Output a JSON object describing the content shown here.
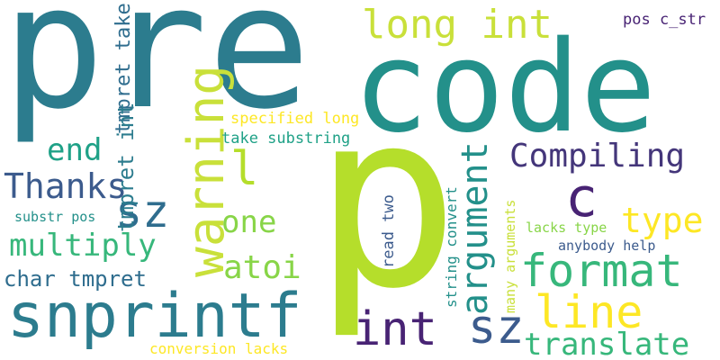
{
  "colors": {
    "background": "#ffffff",
    "palette": [
      "#2c7c8e",
      "#23908a",
      "#b5de2b",
      "#44367a",
      "#c9e03a",
      "#37b77b",
      "#2f6d8e",
      "#482374",
      "#88d548",
      "#fde725",
      "#1fa187",
      "#3c5b8d"
    ]
  },
  "words": {
    "pre": "pre",
    "code": "code",
    "p": "p",
    "snprintf": "snprintf",
    "long_int": "long int",
    "warning": "warning",
    "tmpret_take": "tmpret take",
    "pos_c_str": "pos c_str",
    "compiling": "Compiling",
    "c": "c",
    "end": "end",
    "thanks": "Thanks",
    "sz_left": "sz",
    "l": "l",
    "tmpret_int": "tmpret int",
    "multiply": "multiply",
    "one": "one",
    "argument": "argument",
    "type": "type",
    "format": "format",
    "specified_long": "specified long",
    "take_substring": "take substring",
    "substr_pos": "substr pos",
    "char_tmpret": "char tmpret",
    "atoi": "atoi",
    "line": "line",
    "int": "int",
    "sz_right": "sz",
    "read_two": "read two",
    "string_convert": "string convert",
    "many_arguments": "many arguments",
    "lacks_type": "lacks type",
    "anybody_help": "anybody help",
    "translate": "translate",
    "conversion_lacks": "conversion lacks"
  }
}
